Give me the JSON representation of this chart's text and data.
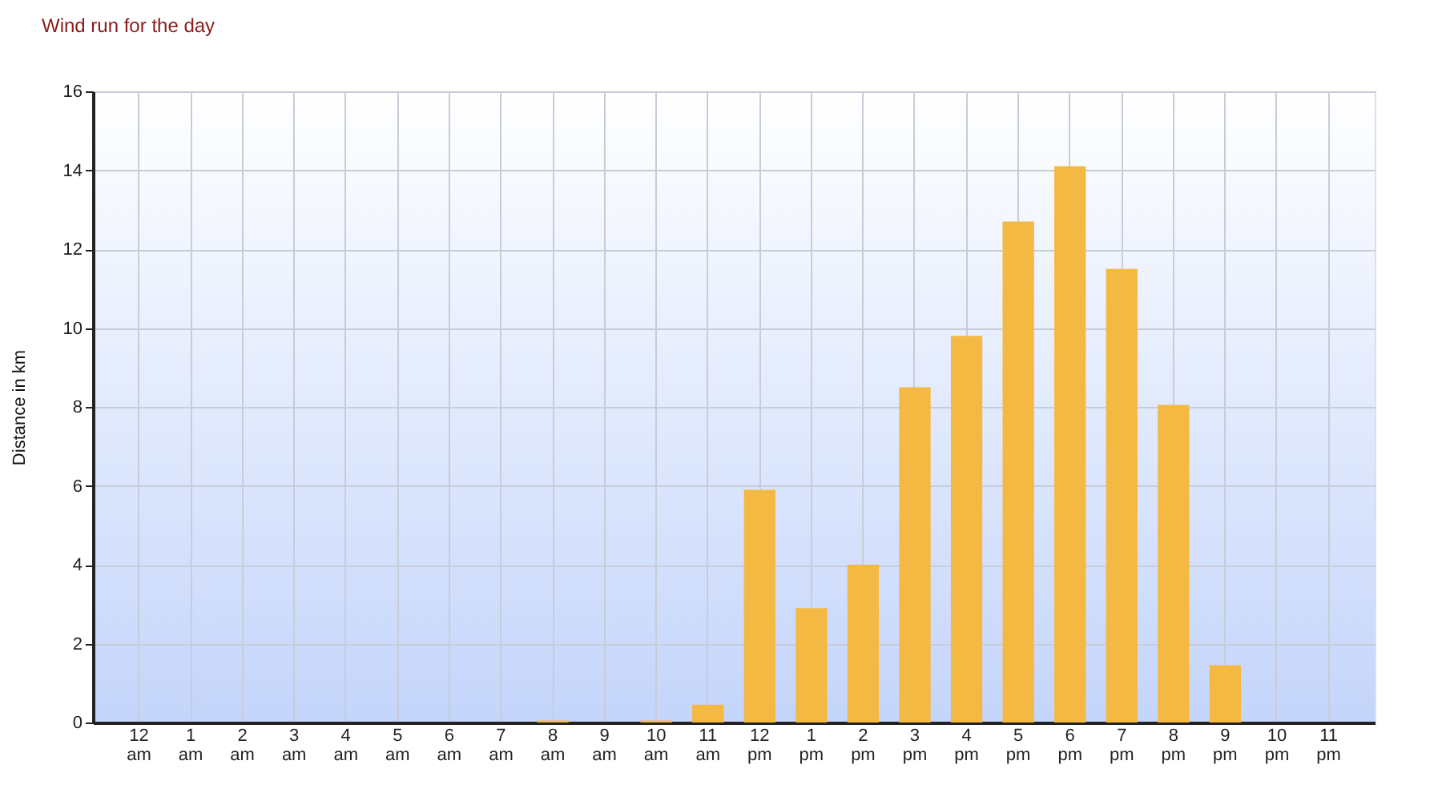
{
  "chart_data": {
    "type": "bar",
    "title": "Wind run for the day",
    "ylabel": "Distance in km",
    "categories": [
      "12 am",
      "1 am",
      "2 am",
      "3 am",
      "4 am",
      "5 am",
      "6 am",
      "7 am",
      "8 am",
      "9 am",
      "10 am",
      "11 am",
      "12 pm",
      "1 pm",
      "2 pm",
      "3 pm",
      "4 pm",
      "5 pm",
      "6 pm",
      "7 pm",
      "8 pm",
      "9 pm",
      "10 pm",
      "11 pm"
    ],
    "values": [
      0,
      0,
      0,
      0,
      0,
      0,
      0,
      0,
      0.05,
      0,
      0.05,
      0.45,
      5.9,
      2.9,
      4.0,
      8.5,
      9.8,
      12.7,
      14.1,
      11.5,
      8.05,
      1.45,
      0,
      0
    ],
    "color": "#f4b942",
    "ylim": [
      0,
      16
    ],
    "yticks": [
      0,
      2,
      4,
      6,
      8,
      10,
      12,
      14,
      16
    ],
    "grid": true
  }
}
